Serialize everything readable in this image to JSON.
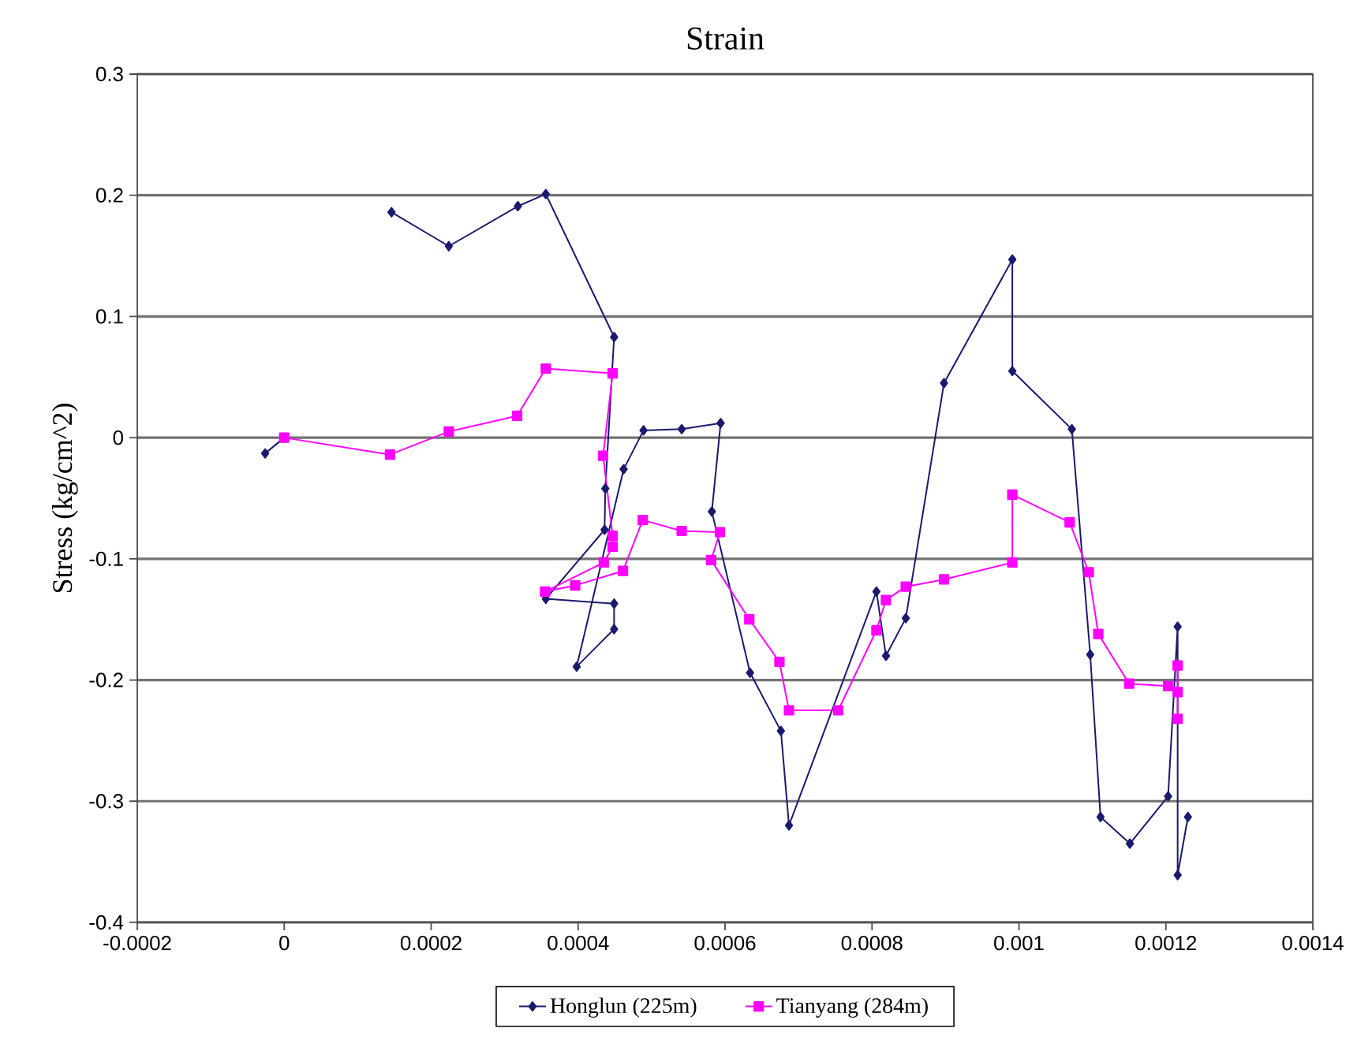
{
  "chart_data": {
    "type": "line",
    "title": "Strain",
    "ylabel": "Stress  (kg/cm^2)",
    "xlim": [
      -0.0002,
      0.0014
    ],
    "xticks": [
      -0.0002,
      0,
      0.0002,
      0.0004,
      0.0006,
      0.0008,
      0.001,
      0.0012,
      0.0014
    ],
    "ylim": [
      -0.4,
      0.3
    ],
    "yticks": [
      -0.4,
      -0.3,
      -0.2,
      -0.1,
      0,
      0.1,
      0.2,
      0.3
    ],
    "grid": "y",
    "legend": "bottom",
    "line_style": "solid",
    "series": [
      {
        "name": "Honglun  (225m)",
        "color": "#1a1a6e",
        "marker": "diamond",
        "x": [
          -2.6e-05,
          0,
          null,
          0.000146,
          0.000224,
          0.000318,
          0.000356,
          0.000449,
          0.000437,
          0.000436,
          0.000356,
          0.000449,
          0.000449,
          0.000398,
          0.000462,
          0.000489,
          0.000541,
          0.000594,
          0.000582,
          0.000634,
          0.000676,
          0.000687,
          0.000806,
          0.000819,
          0.000846,
          0.000898,
          0.000991,
          0.000991,
          0.001072,
          0.001097,
          0.001111,
          0.001151,
          0.001203,
          0.001216,
          0.001216,
          0.00123
        ],
        "values": [
          -0.013,
          0,
          null,
          0.186,
          0.158,
          0.191,
          0.201,
          0.083,
          -0.042,
          -0.076,
          -0.133,
          -0.137,
          -0.158,
          -0.189,
          -0.026,
          0.006,
          0.007,
          0.012,
          -0.061,
          -0.194,
          -0.242,
          -0.32,
          -0.127,
          -0.18,
          -0.149,
          0.045,
          0.147,
          0.055,
          0.007,
          -0.179,
          -0.313,
          -0.335,
          -0.296,
          -0.156,
          -0.361,
          -0.313
        ]
      },
      {
        "name": "Tianyang  (284m)",
        "color": "#ff00ff",
        "marker": "square",
        "x": [
          0,
          0.000144,
          0.000224,
          0.000317,
          0.000356,
          0.000447,
          0.000434,
          0.000447,
          0.000447,
          0.000435,
          0.000355,
          0.000396,
          0.000461,
          0.000488,
          0.000541,
          0.000593,
          0.000581,
          0.000633,
          0.000674,
          0.000687,
          0.000754,
          0.000806,
          0.000819,
          0.000846,
          0.000898,
          0.000991,
          0.000991,
          0.001069,
          0.001095,
          0.001108,
          0.00115,
          0.001203,
          0.001216,
          0.001216,
          0.001216
        ],
        "values": [
          0,
          -0.014,
          0.005,
          0.018,
          0.057,
          0.053,
          -0.015,
          -0.081,
          -0.09,
          -0.103,
          -0.127,
          -0.122,
          -0.11,
          -0.068,
          -0.077,
          -0.078,
          -0.101,
          -0.15,
          -0.185,
          -0.225,
          -0.225,
          -0.159,
          -0.134,
          -0.123,
          -0.117,
          -0.103,
          -0.047,
          -0.07,
          -0.111,
          -0.162,
          -0.203,
          -0.205,
          -0.21,
          -0.188,
          -0.232
        ]
      }
    ]
  }
}
